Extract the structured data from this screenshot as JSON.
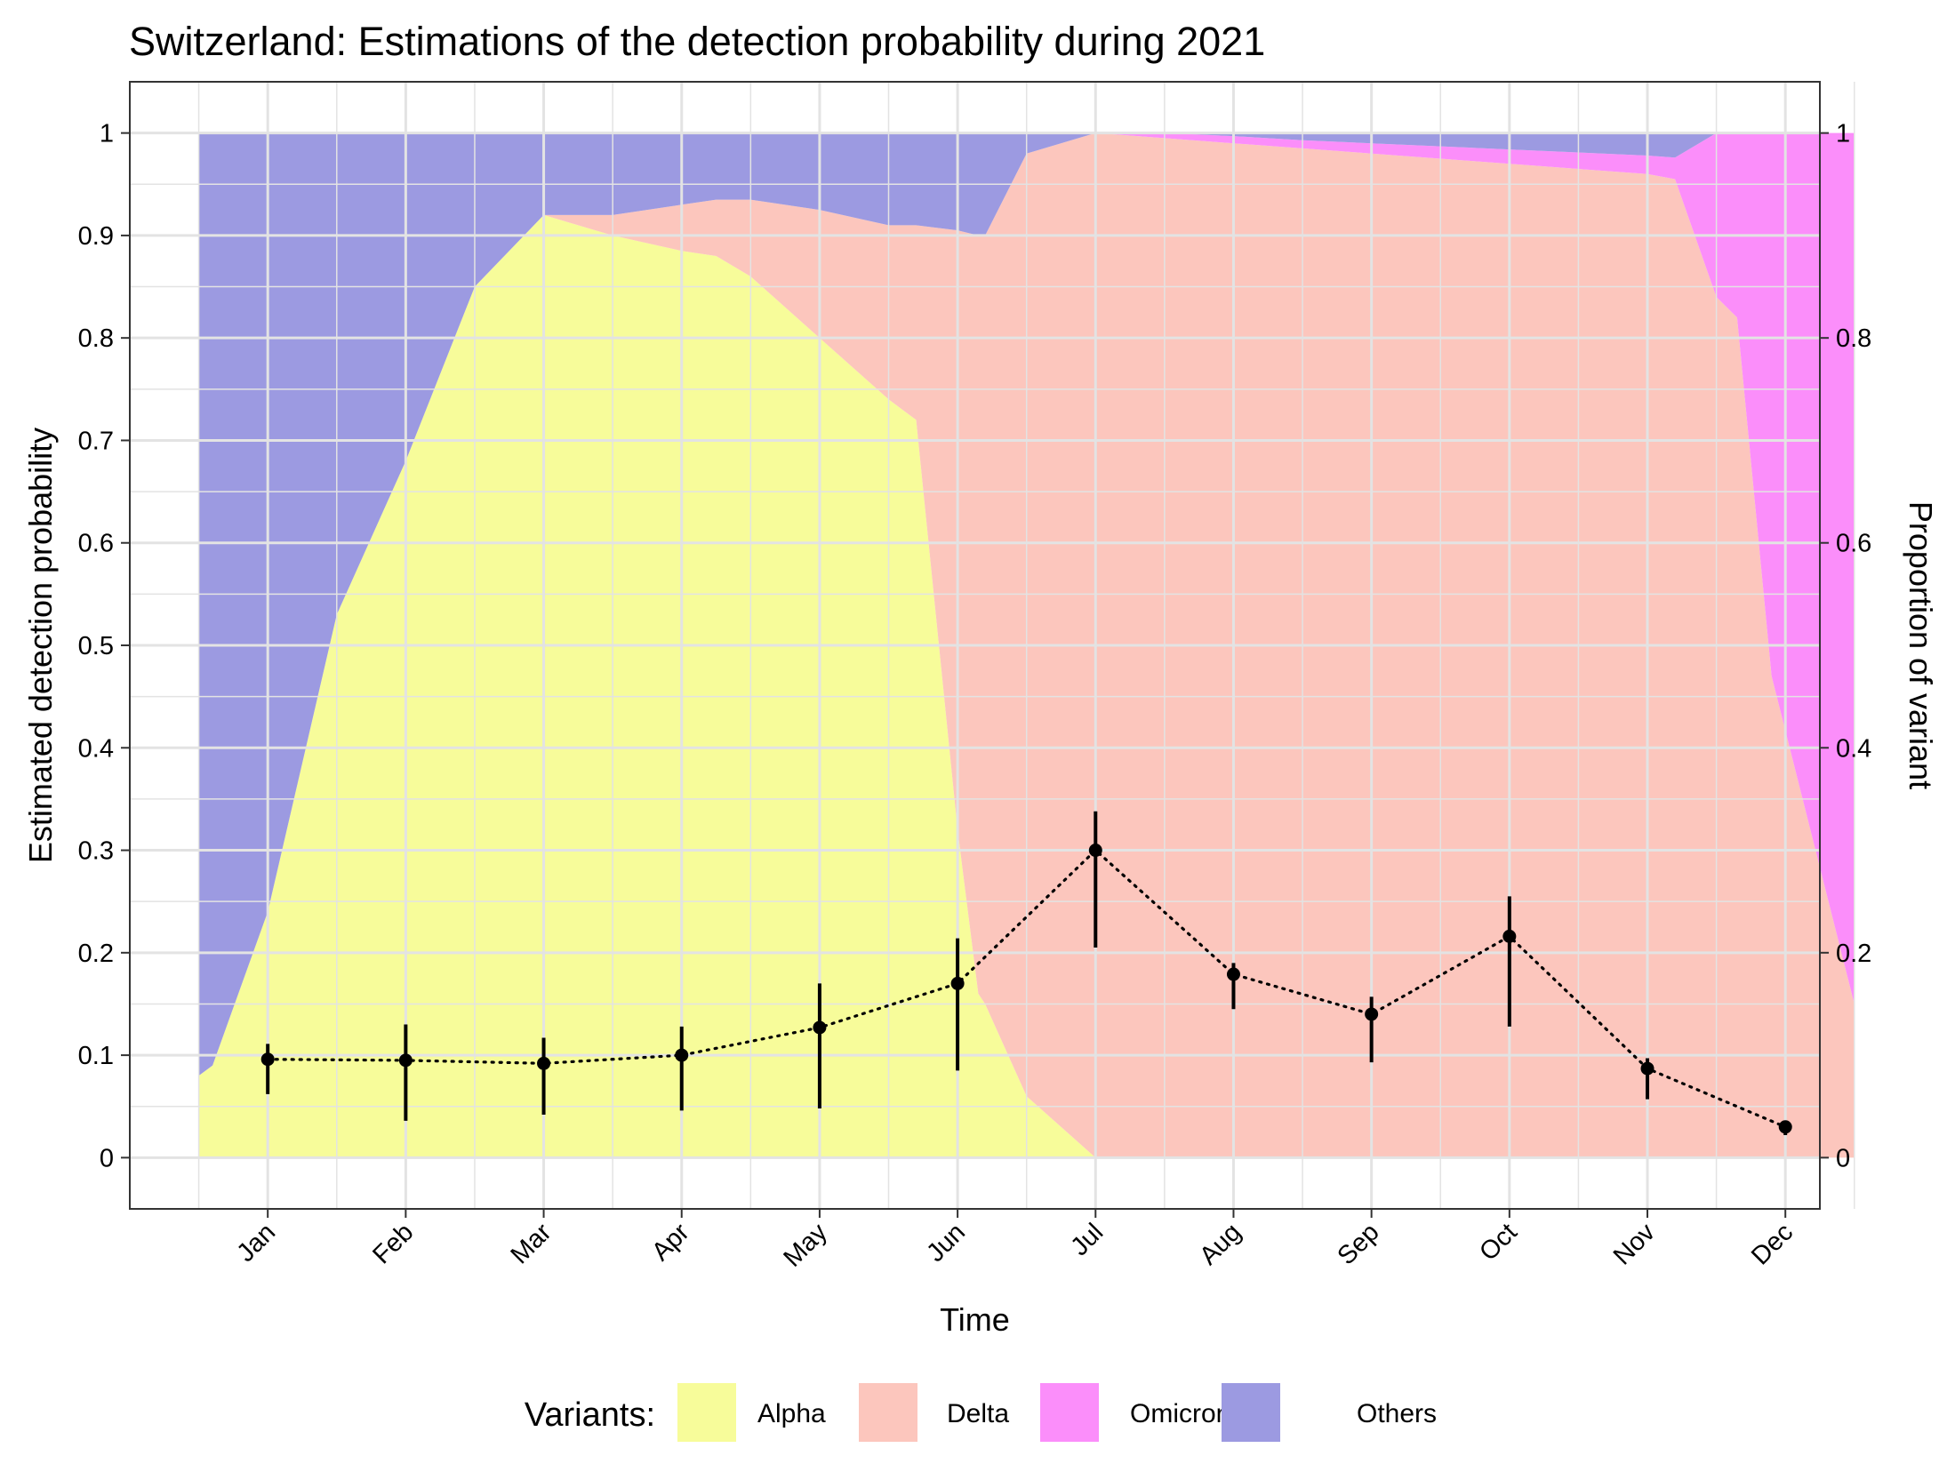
{
  "chart_data": {
    "type": "area",
    "title": "Switzerland: Estimations of the detection probability during 2021",
    "xlabel": "Time",
    "ylabel": "Estimated detection probability",
    "y2label": "Proportion of variant",
    "x_domain": [
      0.0,
      12.25
    ],
    "ylim": [
      -0.05,
      1.05
    ],
    "grid": true,
    "legend_position": "bottom",
    "legend_title": "Variants:",
    "x_ticks": [
      1,
      2,
      3,
      4,
      5,
      6,
      7,
      8,
      9,
      10,
      11,
      12
    ],
    "x_tick_labels": [
      "Jan",
      "Feb",
      "Mar",
      "Apr",
      "May",
      "Jun",
      "Jul",
      "Aug",
      "Sep",
      "Oct",
      "Nov",
      "Dec"
    ],
    "y_ticks": [
      0,
      0.1,
      0.2,
      0.3,
      0.4,
      0.5,
      0.6,
      0.7,
      0.8,
      0.9,
      1
    ],
    "y_tick_labels": [
      "0",
      "0.1",
      "0.2",
      "0.3",
      "0.4",
      "0.5",
      "0.6",
      "0.7",
      "0.8",
      "0.9",
      "1"
    ],
    "y2_ticks": [
      0,
      0.2,
      0.4,
      0.6,
      0.8,
      1
    ],
    "y2_tick_labels": [
      "0",
      "0.2",
      "0.4",
      "0.6",
      "0.8",
      "1"
    ],
    "variant_x": [
      0.5,
      0.6,
      1.0,
      1.5,
      2.0,
      2.5,
      3.0,
      3.5,
      4.0,
      4.25,
      4.5,
      5.0,
      5.5,
      5.7,
      6.0,
      6.15,
      6.2,
      6.5,
      7.0,
      7.5,
      8.0,
      8.5,
      9.0,
      9.5,
      10.0,
      10.5,
      11.0,
      11.2,
      11.5,
      11.65,
      11.9,
      12.5
    ],
    "variant_series": [
      {
        "name": "Alpha",
        "color": "#f7fc9a",
        "values": [
          0.08,
          0.09,
          0.24,
          0.53,
          0.68,
          0.85,
          0.92,
          0.9,
          0.885,
          0.88,
          0.86,
          0.8,
          0.74,
          0.72,
          0.32,
          0.16,
          0.15,
          0.06,
          0.0,
          0.0,
          0.0,
          0.0,
          0.0,
          0.0,
          0.0,
          0.0,
          0.0,
          0.0,
          0.0,
          0.0,
          0.0,
          0.0
        ]
      },
      {
        "name": "Delta",
        "color": "#fcc6bd",
        "values": [
          0.0,
          0.0,
          0.0,
          0.0,
          0.0,
          0.0,
          0.0,
          0.02,
          0.045,
          0.055,
          0.075,
          0.125,
          0.17,
          0.19,
          0.585,
          0.74,
          0.75,
          0.92,
          1.0,
          0.995,
          0.99,
          0.985,
          0.98,
          0.975,
          0.97,
          0.965,
          0.96,
          0.955,
          0.84,
          0.82,
          0.47,
          0.15
        ]
      },
      {
        "name": "Omicron",
        "color": "#fb8efa",
        "values": [
          0.0,
          0.0,
          0.0,
          0.0,
          0.0,
          0.0,
          0.0,
          0.0,
          0.0,
          0.0,
          0.0,
          0.0,
          0.0,
          0.0,
          0.0,
          0.0,
          0.0,
          0.0,
          0.0,
          0.005,
          0.007,
          0.008,
          0.01,
          0.012,
          0.014,
          0.016,
          0.018,
          0.021,
          0.16,
          0.18,
          0.53,
          0.85
        ]
      },
      {
        "name": "Others",
        "color": "#9c9ae1",
        "values": [
          0.92,
          0.91,
          0.76,
          0.47,
          0.32,
          0.15,
          0.08,
          0.08,
          0.07,
          0.065,
          0.065,
          0.075,
          0.09,
          0.09,
          0.095,
          0.1,
          0.1,
          0.02,
          0.0,
          0.0,
          0.003,
          0.007,
          0.01,
          0.013,
          0.016,
          0.019,
          0.022,
          0.024,
          0.0,
          0.0,
          0.0,
          0.0
        ]
      }
    ],
    "series": [
      {
        "name": "",
        "x": [
          1,
          2,
          3,
          4,
          5,
          6,
          7,
          8,
          9,
          10,
          11,
          12
        ],
        "values": [
          0.096,
          0.095,
          0.092,
          0.1,
          0.127,
          0.17,
          0.3,
          0.179,
          0.14,
          0.216,
          0.087,
          0.03
        ],
        "lower": [
          0.062,
          0.036,
          0.042,
          0.046,
          0.048,
          0.085,
          0.205,
          0.145,
          0.093,
          0.128,
          0.057,
          0.022
        ],
        "upper": [
          0.111,
          0.13,
          0.117,
          0.128,
          0.17,
          0.214,
          0.338,
          0.19,
          0.157,
          0.255,
          0.097,
          0.034
        ]
      }
    ]
  }
}
